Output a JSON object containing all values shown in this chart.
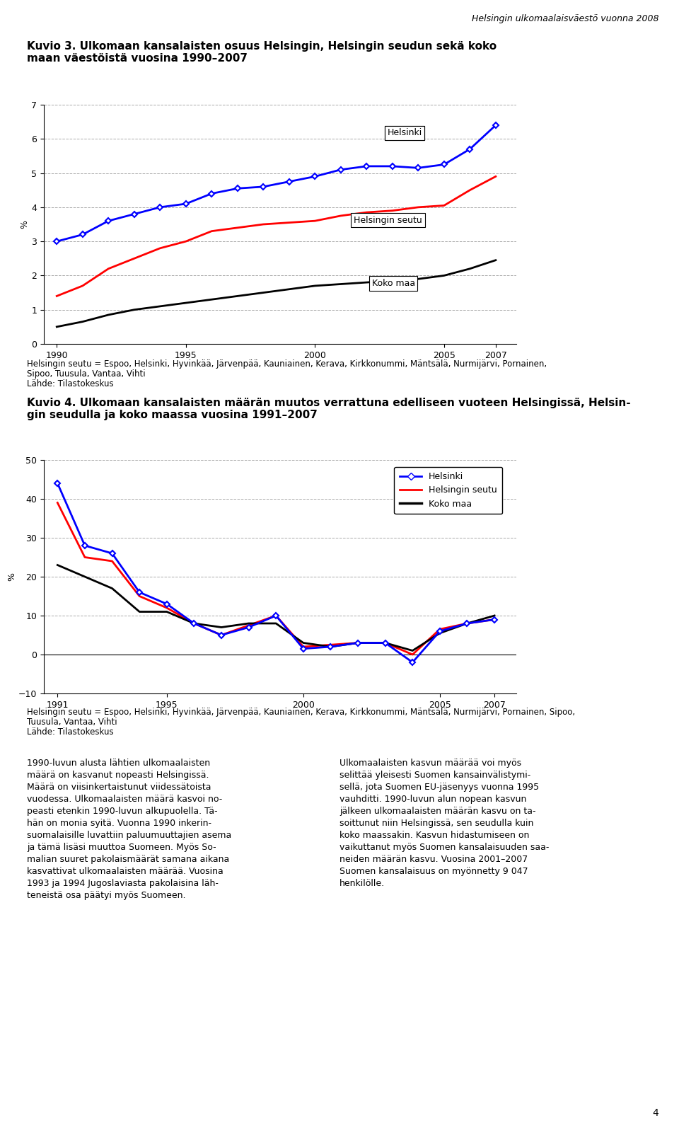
{
  "header_text": "Helsingin ulkomaalaisväestö vuonna 2008",
  "chart1": {
    "title_line1": "Kuvio 3. Ulkomaan kansalaisten osuus Helsingin, Helsingin seudun sekä koko",
    "title_line2": "maan väestöistä vuosina 1990–2007",
    "ylabel": "%",
    "ylim": [
      0,
      7
    ],
    "yticks": [
      0,
      1,
      2,
      3,
      4,
      5,
      6,
      7
    ],
    "xticks": [
      1990,
      1995,
      2000,
      2005,
      2007
    ],
    "years": [
      1990,
      1991,
      1992,
      1993,
      1994,
      1995,
      1996,
      1997,
      1998,
      1999,
      2000,
      2001,
      2002,
      2003,
      2004,
      2005,
      2006,
      2007
    ],
    "helsinki": [
      3.0,
      3.2,
      3.6,
      3.8,
      4.0,
      4.1,
      4.4,
      4.55,
      4.6,
      4.75,
      4.9,
      5.1,
      5.2,
      5.2,
      5.15,
      5.25,
      5.7,
      6.4
    ],
    "helsingin_seutu": [
      1.4,
      1.7,
      2.2,
      2.5,
      2.8,
      3.0,
      3.3,
      3.4,
      3.5,
      3.55,
      3.6,
      3.75,
      3.85,
      3.9,
      4.0,
      4.05,
      4.5,
      4.9
    ],
    "koko_maa": [
      0.5,
      0.65,
      0.85,
      1.0,
      1.1,
      1.2,
      1.3,
      1.4,
      1.5,
      1.6,
      1.7,
      1.75,
      1.8,
      1.85,
      1.9,
      2.0,
      2.2,
      2.45
    ],
    "label_helsinki": "Helsinki",
    "label_helsingin_seutu": "Helsingin seutu",
    "label_koko_maa": "Koko maa",
    "note_line1": "Helsingin seutu = Espoo, Helsinki, Hyvinkää, Järvenpää, Kauniainen, Kerava, Kirkkonummi, Mäntsälä, Nurmijärvi, Pornainen,",
    "note_line2": "Sipoo, Tuusula, Vantaa, Vihti",
    "note_line3": "Lähde: Tilastokeskus"
  },
  "chart2": {
    "title_line1": "Kuvio 4. Ulkomaan kansalaisten määrän muutos verrattuna edelliseen vuoteen Helsingissä, Helsin-",
    "title_line2": "gin seudulla ja koko maassa vuosina 1991–2007",
    "ylabel": "%",
    "ylim": [
      -10,
      50
    ],
    "yticks": [
      -10,
      0,
      10,
      20,
      30,
      40,
      50
    ],
    "xticks": [
      1991,
      1995,
      2000,
      2005,
      2007
    ],
    "years": [
      1991,
      1992,
      1993,
      1994,
      1995,
      1996,
      1997,
      1998,
      1999,
      2000,
      2001,
      2002,
      2003,
      2004,
      2005,
      2006,
      2007
    ],
    "helsinki": [
      44,
      28,
      26,
      16,
      13,
      8,
      5,
      7,
      10,
      1.5,
      2,
      3,
      3,
      -2,
      6,
      8,
      9
    ],
    "helsingin_seutu": [
      39,
      25,
      24,
      15,
      12,
      8,
      5,
      7.5,
      10,
      2,
      2.5,
      3,
      3,
      0,
      6.5,
      8,
      9
    ],
    "koko_maa": [
      23,
      20,
      17,
      11,
      11,
      8,
      7,
      8,
      8,
      3,
      2,
      3,
      3,
      1,
      5.5,
      8,
      10
    ],
    "label_helsinki": "Helsinki",
    "label_helsingin_seutu": "Helsingin seutu",
    "label_koko_maa": "Koko maa",
    "note_line1": "Helsingin seutu = Espoo, Helsinki, Hyvinkää, Järvenpää, Kauniainen, Kerava, Kirkkonummi, Mäntsälä, Nurmijärvi, Pornainen, Sipoo,",
    "note_line2": "Tuusula, Vantaa, Vihti",
    "note_line3": "Lähde: Tilastokeskus"
  },
  "body_text_left": "1990-luvun alusta lähtien ulkomaalaisten\nmäärä on kasvanut nopeasti Helsingissä.\nMäärä on viisinkertaistunut viidessätoista\nvuodessa. Ulkomaalaisten määrä kasvoi no-\npeasti etenkin 1990-luvun alkupuolella. Tä-\nhän on monia syitä. Vuonna 1990 inkerin-\nsuomalaisille luvattiin paluumuuttajien asema\nja tämä lisäsi muuttoa Suomeen. Myös So-\nmalian suuret pakolaismäärät samana aikana\nkasvattivat ulkomaalaisten määrää. Vuosina\n1993 ja 1994 Jugoslaviasta pakolaisina läh-\nteneistä osa päätyi myös Suomeen.",
  "body_text_right": "Ulkomaalaisten kasvun määrää voi myös\nselittää yleisesti Suomen kansainvälistymi-\nsellä, jota Suomen EU-jäsenyys vuonna 1995\nvauhditti. 1990-luvun alun nopean kasvun\njälkeen ulkomaalaisten määrän kasvu on ta-\nsoittunut niin Helsingissä, sen seudulla kuin\nkoko maassakin. Kasvun hidastumiseen on\nvaikuttanut myös Suomen kansalaisuuden saa-\nneiden määrän kasvu. Vuosina 2001–2007\nSuomen kansalaisuus on myönnetty 9 047\nhenkilölle.",
  "page_num": "4",
  "colors": {
    "helsinki": "#0000FF",
    "helsingin_seutu": "#FF0000",
    "koko_maa": "#000000",
    "background": "#FFFFFF",
    "grid": "#AAAAAA",
    "text": "#000000"
  }
}
